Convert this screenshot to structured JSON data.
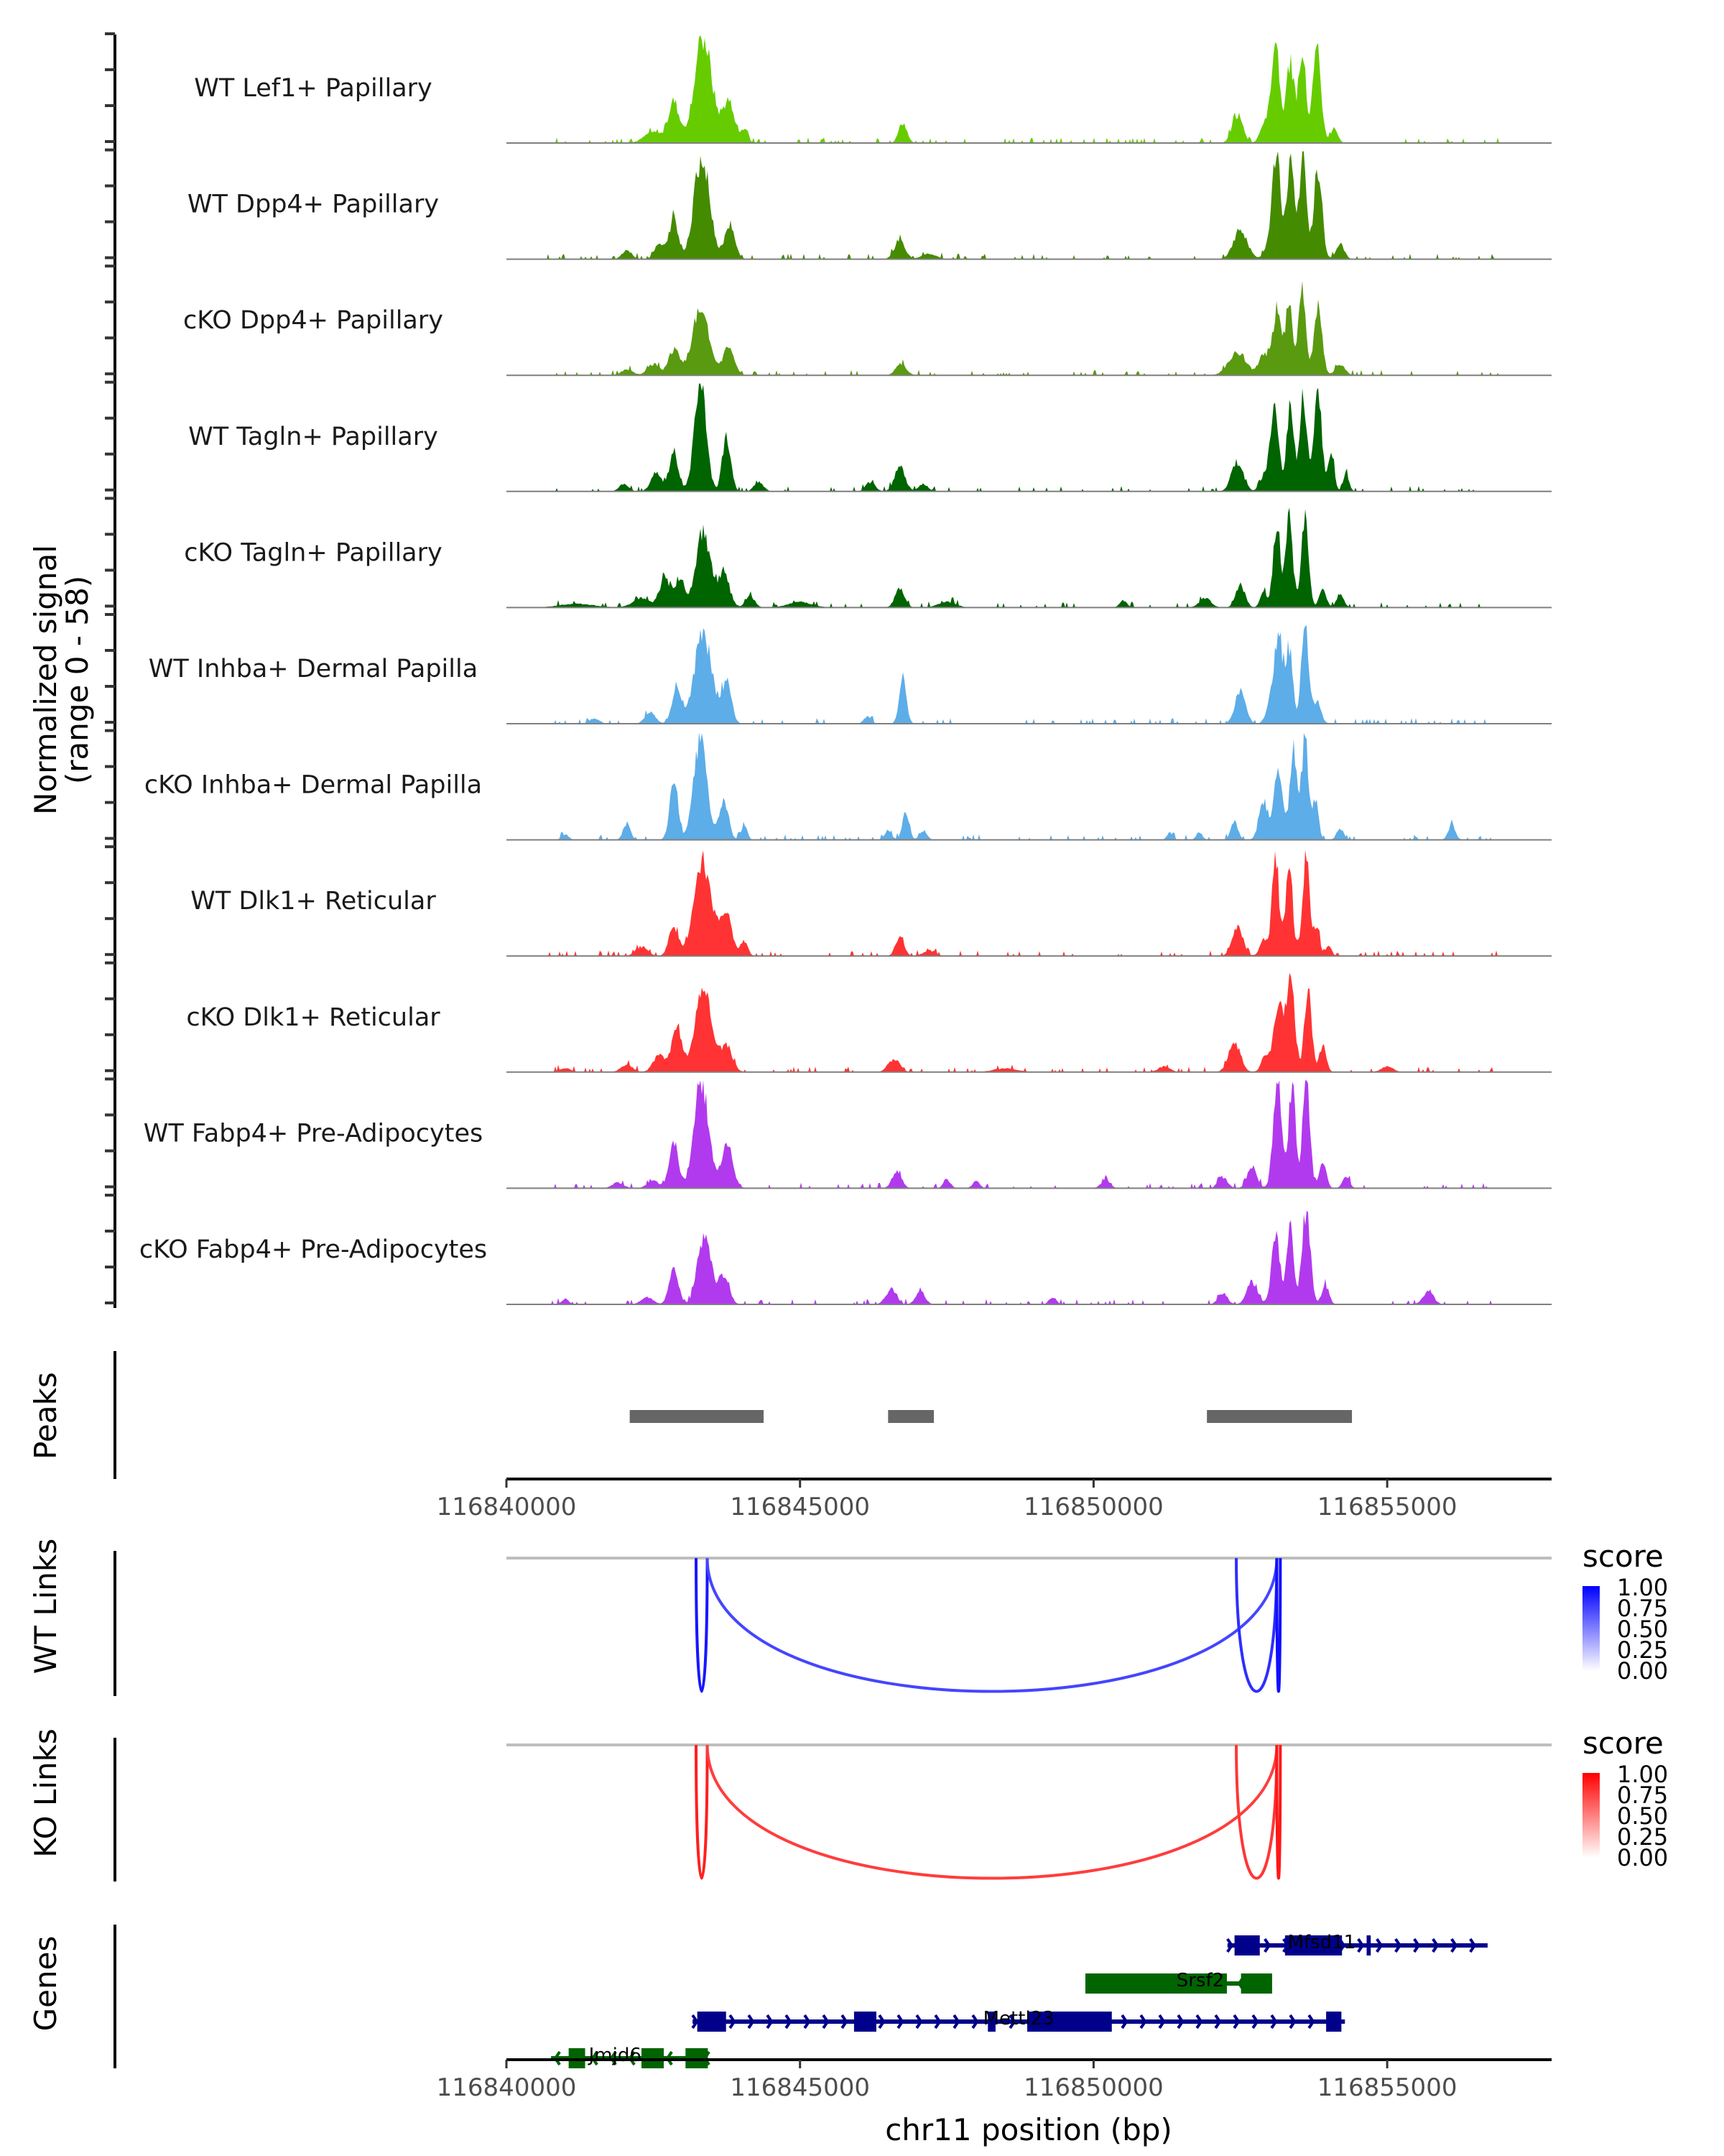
{
  "chart_data": {
    "type": "area",
    "title": "",
    "chromosome": "chr11",
    "xlabel": "chr11 position (bp)",
    "xlim": [
      116840000,
      116857800
    ],
    "x_ticks": [
      116840000,
      116845000,
      116850000,
      116855000
    ],
    "x_tick_labels": [
      "116840000",
      "116845000",
      "116850000",
      "116855000"
    ],
    "ylabel_line1": "Normalized signal",
    "ylabel_line2": "(range 0 - 58)",
    "ylim": [
      0,
      58
    ],
    "coverage_tracks": [
      {
        "name": "WT Lef1+ Papillary",
        "color": "#66cc00",
        "peaks": [
          [
            116842500,
            6,
            150
          ],
          [
            116842850,
            22,
            90
          ],
          [
            116843350,
            56,
            150
          ],
          [
            116843780,
            22,
            100
          ],
          [
            116844050,
            7,
            60
          ],
          [
            116846750,
            11,
            70
          ],
          [
            116852450,
            15,
            90
          ],
          [
            116852900,
            10,
            70
          ],
          [
            116853100,
            50,
            80
          ],
          [
            116853350,
            44,
            60
          ],
          [
            116853550,
            52,
            60
          ],
          [
            116853800,
            50,
            70
          ],
          [
            116854100,
            8,
            60
          ]
        ]
      },
      {
        "name": "WT Dpp4+ Papillary",
        "color": "#458b00",
        "peaks": [
          [
            116842050,
            5,
            80
          ],
          [
            116842600,
            8,
            80
          ],
          [
            116842850,
            22,
            80
          ],
          [
            116843330,
            56,
            130
          ],
          [
            116843800,
            17,
            90
          ],
          [
            116846700,
            10,
            90
          ],
          [
            116847200,
            3,
            120
          ],
          [
            116852500,
            15,
            120
          ],
          [
            116853000,
            8,
            80
          ],
          [
            116853120,
            55,
            70
          ],
          [
            116853350,
            52,
            60
          ],
          [
            116853560,
            55,
            60
          ],
          [
            116853820,
            50,
            70
          ],
          [
            116854200,
            8,
            70
          ]
        ]
      },
      {
        "name": "cKO Dpp4+ Papillary",
        "color": "#5a9a10",
        "peaks": [
          [
            116842050,
            3,
            100
          ],
          [
            116842500,
            6,
            100
          ],
          [
            116842850,
            14,
            90
          ],
          [
            116843300,
            34,
            140
          ],
          [
            116843780,
            14,
            100
          ],
          [
            116846720,
            6,
            90
          ],
          [
            116852450,
            12,
            150
          ],
          [
            116852900,
            12,
            80
          ],
          [
            116853120,
            35,
            70
          ],
          [
            116853330,
            40,
            60
          ],
          [
            116853550,
            48,
            60
          ],
          [
            116853820,
            36,
            70
          ],
          [
            116854200,
            6,
            80
          ]
        ]
      },
      {
        "name": "WT Tagln+ Papillary",
        "color": "#006400",
        "peaks": [
          [
            116842000,
            4,
            80
          ],
          [
            116842550,
            10,
            90
          ],
          [
            116842850,
            20,
            80
          ],
          [
            116843300,
            58,
            100
          ],
          [
            116843750,
            30,
            70
          ],
          [
            116844300,
            5,
            80
          ],
          [
            116846200,
            5,
            80
          ],
          [
            116846700,
            13,
            90
          ],
          [
            116847100,
            4,
            80
          ],
          [
            116852450,
            16,
            100
          ],
          [
            116852900,
            8,
            70
          ],
          [
            116853080,
            45,
            70
          ],
          [
            116853350,
            48,
            60
          ],
          [
            116853570,
            52,
            60
          ],
          [
            116853820,
            50,
            70
          ],
          [
            116854050,
            20,
            50
          ],
          [
            116854300,
            10,
            50
          ]
        ]
      },
      {
        "name": "cKO Tagln+ Papillary",
        "color": "#006400",
        "peaks": [
          [
            116841200,
            2,
            300
          ],
          [
            116842300,
            5,
            150
          ],
          [
            116842700,
            16,
            90
          ],
          [
            116842950,
            15,
            80
          ],
          [
            116843350,
            40,
            120
          ],
          [
            116843700,
            18,
            100
          ],
          [
            116844150,
            6,
            80
          ],
          [
            116845000,
            3,
            200
          ],
          [
            116846700,
            10,
            80
          ],
          [
            116847500,
            3,
            150
          ],
          [
            116850500,
            4,
            60
          ],
          [
            116851900,
            5,
            100
          ],
          [
            116852500,
            12,
            80
          ],
          [
            116852900,
            8,
            60
          ],
          [
            116853120,
            45,
            60
          ],
          [
            116853330,
            48,
            60
          ],
          [
            116853600,
            50,
            60
          ],
          [
            116853900,
            10,
            60
          ],
          [
            116854200,
            8,
            60
          ]
        ]
      },
      {
        "name": "WT Inhba+ Dermal Papilla",
        "color": "#5dade8",
        "peaks": [
          [
            116841500,
            3,
            80
          ],
          [
            116842450,
            6,
            90
          ],
          [
            116842900,
            20,
            80
          ],
          [
            116843350,
            48,
            150
          ],
          [
            116843750,
            22,
            80
          ],
          [
            116846150,
            4,
            60
          ],
          [
            116846750,
            26,
            60
          ],
          [
            116852500,
            18,
            90
          ],
          [
            116853000,
            10,
            70
          ],
          [
            116853150,
            48,
            70
          ],
          [
            116853330,
            40,
            60
          ],
          [
            116853600,
            55,
            60
          ],
          [
            116853800,
            12,
            70
          ]
        ]
      },
      {
        "name": "cKO Inhba+ Dermal Papilla",
        "color": "#5dade8",
        "peaks": [
          [
            116841000,
            3,
            60
          ],
          [
            116842050,
            9,
            60
          ],
          [
            116842850,
            32,
            70
          ],
          [
            116843300,
            55,
            110
          ],
          [
            116843700,
            20,
            80
          ],
          [
            116844050,
            8,
            50
          ],
          [
            116846500,
            5,
            60
          ],
          [
            116846800,
            14,
            60
          ],
          [
            116847100,
            5,
            60
          ],
          [
            116851300,
            4,
            50
          ],
          [
            116851800,
            4,
            50
          ],
          [
            116852400,
            10,
            60
          ],
          [
            116852900,
            20,
            80
          ],
          [
            116853150,
            38,
            70
          ],
          [
            116853400,
            48,
            60
          ],
          [
            116853600,
            55,
            60
          ],
          [
            116853780,
            22,
            50
          ],
          [
            116854200,
            6,
            60
          ],
          [
            116856100,
            8,
            60
          ]
        ]
      },
      {
        "name": "WT Dlk1+ Reticular",
        "color": "#ff3333",
        "peaks": [
          [
            116842300,
            5,
            100
          ],
          [
            116842850,
            16,
            80
          ],
          [
            116843350,
            50,
            150
          ],
          [
            116843750,
            24,
            90
          ],
          [
            116844050,
            8,
            60
          ],
          [
            116846700,
            11,
            70
          ],
          [
            116847200,
            3,
            100
          ],
          [
            116852450,
            16,
            90
          ],
          [
            116852900,
            8,
            70
          ],
          [
            116853100,
            52,
            60
          ],
          [
            116853330,
            50,
            60
          ],
          [
            116853620,
            55,
            60
          ],
          [
            116853800,
            15,
            50
          ],
          [
            116854000,
            6,
            50
          ]
        ]
      },
      {
        "name": "cKO Dlk1+ Reticular",
        "color": "#ff3333",
        "peaks": [
          [
            116841000,
            2,
            100
          ],
          [
            116842050,
            4,
            100
          ],
          [
            116842600,
            9,
            100
          ],
          [
            116842900,
            22,
            90
          ],
          [
            116843350,
            45,
            140
          ],
          [
            116843750,
            14,
            100
          ],
          [
            116846600,
            7,
            100
          ],
          [
            116848500,
            2,
            200
          ],
          [
            116851200,
            3,
            100
          ],
          [
            116852400,
            16,
            100
          ],
          [
            116852950,
            10,
            80
          ],
          [
            116853150,
            38,
            70
          ],
          [
            116853350,
            50,
            70
          ],
          [
            116853650,
            45,
            60
          ],
          [
            116853900,
            14,
            60
          ],
          [
            116855000,
            3,
            100
          ]
        ]
      },
      {
        "name": "WT Fabp4+ Pre-Adipocytes",
        "color": "#b23aee",
        "peaks": [
          [
            116841900,
            3,
            100
          ],
          [
            116842500,
            4,
            100
          ],
          [
            116842850,
            24,
            80
          ],
          [
            116843320,
            58,
            120
          ],
          [
            116843750,
            22,
            100
          ],
          [
            116846650,
            9,
            80
          ],
          [
            116847500,
            5,
            60
          ],
          [
            116848000,
            4,
            60
          ],
          [
            116850200,
            4,
            80
          ],
          [
            116852200,
            6,
            80
          ],
          [
            116852700,
            12,
            80
          ],
          [
            116853130,
            58,
            70
          ],
          [
            116853380,
            55,
            60
          ],
          [
            116853620,
            58,
            60
          ],
          [
            116853900,
            14,
            60
          ],
          [
            116854300,
            6,
            60
          ]
        ]
      },
      {
        "name": "cKO Fabp4+ Pre-Adipocytes",
        "color": "#b23aee",
        "peaks": [
          [
            116841000,
            3,
            60
          ],
          [
            116842400,
            4,
            100
          ],
          [
            116842850,
            18,
            80
          ],
          [
            116843370,
            38,
            110
          ],
          [
            116843700,
            16,
            90
          ],
          [
            116846550,
            8,
            90
          ],
          [
            116847050,
            7,
            80
          ],
          [
            116849300,
            4,
            60
          ],
          [
            116852200,
            6,
            80
          ],
          [
            116852700,
            12,
            90
          ],
          [
            116853100,
            38,
            70
          ],
          [
            116853350,
            42,
            60
          ],
          [
            116853620,
            50,
            70
          ],
          [
            116853950,
            10,
            60
          ],
          [
            116855700,
            7,
            90
          ]
        ]
      }
    ],
    "peaks_track": {
      "label": "Peaks",
      "color": "#666666",
      "regions": [
        [
          116842100,
          116844380
        ],
        [
          116846500,
          116847280
        ],
        [
          116851930,
          116854400
        ]
      ]
    },
    "link_tracks": [
      {
        "label": "WT Links",
        "legend_title": "score",
        "color_low": "#ffffff",
        "color_high": "#0000ff",
        "legend_ticks": [
          "1.00",
          "0.75",
          "0.50",
          "0.25",
          "0.00"
        ],
        "links": [
          {
            "start": 116843230,
            "end": 116843420,
            "score": 0.85
          },
          {
            "start": 116843420,
            "end": 116853120,
            "score": 0.55
          },
          {
            "start": 116852430,
            "end": 116853120,
            "score": 0.7
          },
          {
            "start": 116853120,
            "end": 116853180,
            "score": 0.9
          }
        ]
      },
      {
        "label": "KO Links",
        "legend_title": "score",
        "color_low": "#ffffff",
        "color_high": "#ff0000",
        "legend_ticks": [
          "1.00",
          "0.75",
          "0.50",
          "0.25",
          "0.00"
        ],
        "links": [
          {
            "start": 116843230,
            "end": 116843420,
            "score": 0.8
          },
          {
            "start": 116843420,
            "end": 116853120,
            "score": 0.6
          },
          {
            "start": 116852430,
            "end": 116853120,
            "score": 0.65
          },
          {
            "start": 116853120,
            "end": 116853180,
            "score": 0.85
          }
        ]
      }
    ],
    "genes_track": {
      "label": "Genes",
      "genes": [
        {
          "name": "Mfsd11",
          "strand": "+",
          "color": "#00008b",
          "row": 0,
          "start": 116852280,
          "end": 116856710,
          "exons": [
            [
              116852400,
              116852830
            ],
            [
              116853260,
              116854230
            ],
            [
              116854650,
              116854720
            ]
          ]
        },
        {
          "name": "Srsf2",
          "strand": "-",
          "color": "#006400",
          "row": 1,
          "start": 116849860,
          "end": 116853040,
          "exons": [
            [
              116849860,
              116852270
            ],
            [
              116852510,
              116853040
            ]
          ]
        },
        {
          "name": "Mettl23",
          "strand": "+",
          "color": "#00008b",
          "row": 2,
          "start": 116843170,
          "end": 116854280,
          "exons": [
            [
              116843250,
              116843740
            ],
            [
              116845920,
              116846300
            ],
            [
              116848200,
              116848330
            ],
            [
              116848870,
              116850310
            ],
            [
              116853960,
              116854220
            ]
          ]
        },
        {
          "name": "Jmjd6",
          "strand": "-",
          "color": "#006400",
          "row": 3,
          "start": 116840760,
          "end": 116843430,
          "exons": [
            [
              116841060,
              116841340
            ],
            [
              116842300,
              116842680
            ],
            [
              116843050,
              116843430
            ]
          ]
        }
      ]
    }
  }
}
